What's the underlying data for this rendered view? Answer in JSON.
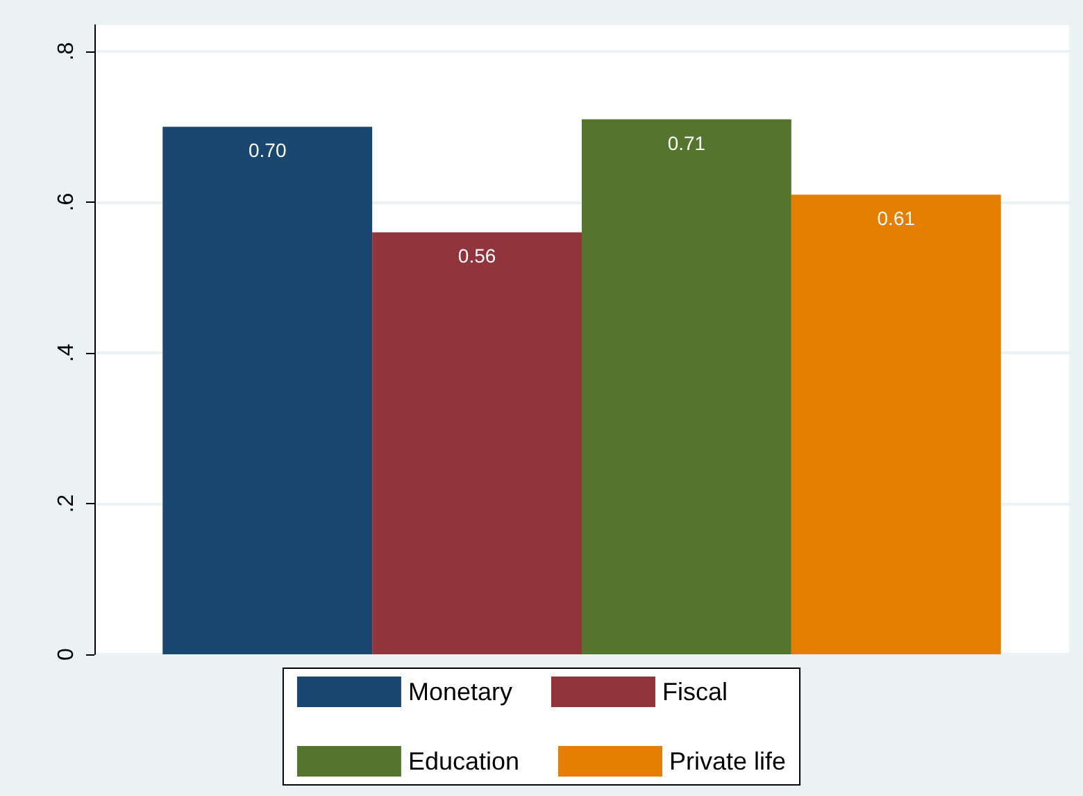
{
  "chart_data": {
    "type": "bar",
    "categories": [
      null
    ],
    "series": [
      {
        "name": "Monetary",
        "color": "#1a476f",
        "values": [
          0.7
        ],
        "value_labels": [
          "0.70"
        ]
      },
      {
        "name": "Fiscal",
        "color": "#90353b",
        "values": [
          0.56
        ],
        "value_labels": [
          "0.56"
        ]
      },
      {
        "name": "Education",
        "color": "#55752f",
        "values": [
          0.71
        ],
        "value_labels": [
          "0.71"
        ]
      },
      {
        "name": "Private life",
        "color": "#e37e00",
        "values": [
          0.61
        ],
        "value_labels": [
          "0.61"
        ]
      }
    ],
    "ylim": [
      0,
      0.835
    ],
    "yticks": [
      0,
      {
        "value": 0.2,
        "label": ".2"
      },
      {
        "value": 0.4,
        "label": ".4"
      },
      {
        "value": 0.6,
        "label": ".6"
      },
      {
        "value": 0.8,
        "label": ".8"
      }
    ],
    "grid": "y",
    "legend": "bottom"
  }
}
